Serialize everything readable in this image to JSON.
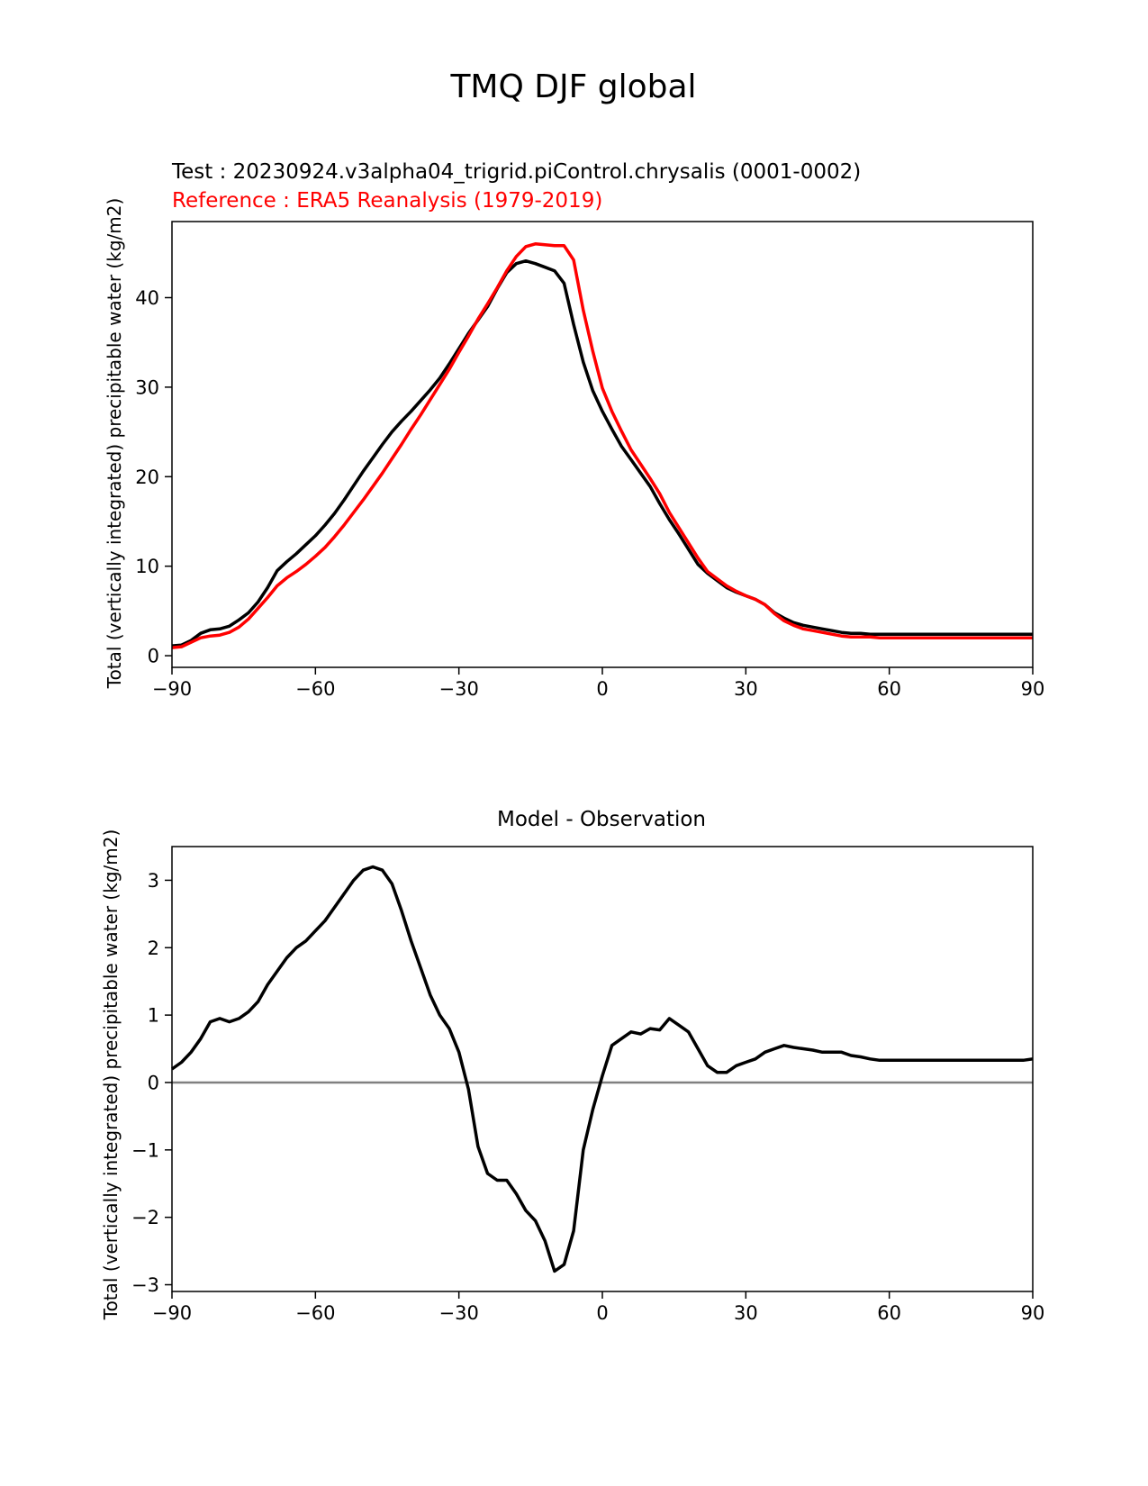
{
  "figure": {
    "suptitle": "TMQ DJF global"
  },
  "chart_data": [
    {
      "type": "line",
      "title_test": "Test : 20230924.v3alpha04_trigrid.piControl.chrysalis (0001-0002)",
      "title_reference": "Reference : ERA5 Reanalysis (1979-2019)",
      "xlabel": "",
      "ylabel": "Total (vertically integrated) precipitable water (kg/m2)",
      "xlim": [
        -90,
        90
      ],
      "ylim": [
        -1.3,
        48.5
      ],
      "xticks": [
        -90,
        -60,
        -30,
        0,
        30,
        60,
        90
      ],
      "xtick_labels": [
        "−90",
        "−60",
        "−30",
        "0",
        "30",
        "60",
        "90"
      ],
      "yticks": [
        0,
        10,
        20,
        30,
        40
      ],
      "ytick_labels": [
        "0",
        "10",
        "20",
        "30",
        "40"
      ],
      "grid": false,
      "series": [
        {
          "color": "#000000",
          "x": [
            -90,
            -88,
            -86,
            -84,
            -82,
            -80,
            -78,
            -76,
            -74,
            -72,
            -70,
            -68,
            -66,
            -64,
            -62,
            -60,
            -58,
            -56,
            -54,
            -52,
            -50,
            -48,
            -46,
            -44,
            -42,
            -40,
            -38,
            -36,
            -34,
            -32,
            -30,
            -28,
            -26,
            -24,
            -22,
            -20,
            -18,
            -16,
            -14,
            -12,
            -10,
            -8,
            -6,
            -4,
            -2,
            0,
            2,
            4,
            6,
            8,
            10,
            12,
            14,
            16,
            18,
            20,
            22,
            24,
            26,
            28,
            30,
            32,
            34,
            36,
            38,
            40,
            42,
            44,
            46,
            48,
            50,
            52,
            54,
            56,
            58,
            60,
            62,
            64,
            66,
            68,
            70,
            72,
            74,
            76,
            78,
            80,
            82,
            84,
            86,
            88,
            90
          ],
          "y": [
            1.1,
            1.2,
            1.7,
            2.5,
            2.9,
            3.0,
            3.3,
            4.0,
            4.8,
            6.0,
            7.6,
            9.5,
            10.5,
            11.4,
            12.4,
            13.4,
            14.6,
            15.9,
            17.4,
            19.0,
            20.6,
            22.1,
            23.6,
            25.0,
            26.2,
            27.3,
            28.5,
            29.7,
            31.0,
            32.6,
            34.3,
            36.0,
            37.5,
            39.0,
            41.0,
            42.8,
            43.8,
            44.1,
            43.8,
            43.4,
            43.0,
            41.6,
            37.0,
            32.8,
            29.6,
            27.3,
            25.3,
            23.4,
            21.9,
            20.4,
            18.9,
            17.0,
            15.2,
            13.6,
            11.9,
            10.2,
            9.2,
            8.4,
            7.6,
            7.1,
            6.7,
            6.3,
            5.7,
            4.8,
            4.2,
            3.7,
            3.4,
            3.2,
            3.0,
            2.8,
            2.6,
            2.5,
            2.5,
            2.4,
            2.4,
            2.4,
            2.4,
            2.4,
            2.4,
            2.4,
            2.4,
            2.4,
            2.4,
            2.4,
            2.4,
            2.4,
            2.4,
            2.4,
            2.4,
            2.4,
            2.4
          ]
        },
        {
          "color": "#ff0000",
          "x": [
            -90,
            -88,
            -86,
            -84,
            -82,
            -80,
            -78,
            -76,
            -74,
            -72,
            -70,
            -68,
            -66,
            -64,
            -62,
            -60,
            -58,
            -56,
            -54,
            -52,
            -50,
            -48,
            -46,
            -44,
            -42,
            -40,
            -38,
            -36,
            -34,
            -32,
            -30,
            -28,
            -26,
            -24,
            -22,
            -20,
            -18,
            -16,
            -14,
            -12,
            -10,
            -8,
            -6,
            -4,
            -2,
            0,
            2,
            4,
            6,
            8,
            10,
            12,
            14,
            16,
            18,
            20,
            22,
            24,
            26,
            28,
            30,
            32,
            34,
            36,
            38,
            40,
            42,
            44,
            46,
            48,
            50,
            52,
            54,
            56,
            58,
            60,
            62,
            64,
            66,
            68,
            70,
            72,
            74,
            76,
            78,
            80,
            82,
            84,
            86,
            88,
            90
          ],
          "y": [
            0.9,
            1.0,
            1.5,
            2.0,
            2.2,
            2.3,
            2.6,
            3.2,
            4.1,
            5.3,
            6.5,
            7.8,
            8.7,
            9.4,
            10.2,
            11.1,
            12.1,
            13.3,
            14.6,
            16.0,
            17.4,
            18.9,
            20.4,
            22.0,
            23.6,
            25.3,
            26.9,
            28.6,
            30.3,
            32.0,
            33.9,
            35.7,
            37.6,
            39.3,
            41.1,
            43.0,
            44.6,
            45.7,
            46.0,
            45.9,
            45.8,
            45.8,
            44.2,
            38.6,
            34.0,
            29.9,
            27.3,
            25.1,
            23.0,
            21.4,
            19.8,
            18.1,
            16.0,
            14.3,
            12.6,
            10.9,
            9.4,
            8.6,
            7.8,
            7.2,
            6.7,
            6.3,
            5.7,
            4.7,
            3.9,
            3.4,
            3.0,
            2.8,
            2.6,
            2.4,
            2.2,
            2.1,
            2.1,
            2.1,
            2.0,
            2.0,
            2.0,
            2.0,
            2.0,
            2.0,
            2.0,
            2.0,
            2.0,
            2.0,
            2.0,
            2.0,
            2.0,
            2.0,
            2.0,
            2.0,
            2.0
          ]
        }
      ]
    },
    {
      "type": "line",
      "title": "Model - Observation",
      "xlabel": "",
      "ylabel": "Total (vertically integrated) precipitable water (kg/m2)",
      "xlim": [
        -90,
        90
      ],
      "ylim": [
        -3.1,
        3.5
      ],
      "xticks": [
        -90,
        -60,
        -30,
        0,
        30,
        60,
        90
      ],
      "xtick_labels": [
        "−90",
        "−60",
        "−30",
        "0",
        "30",
        "60",
        "90"
      ],
      "yticks": [
        -3,
        -2,
        -1,
        0,
        1,
        2,
        3
      ],
      "ytick_labels": [
        "−3",
        "−2",
        "−1",
        "0",
        "1",
        "2",
        "3"
      ],
      "zero_line_color": "#808080",
      "grid": false,
      "series": [
        {
          "color": "#000000",
          "x": [
            -90,
            -88,
            -86,
            -84,
            -82,
            -80,
            -78,
            -76,
            -74,
            -72,
            -70,
            -68,
            -66,
            -64,
            -62,
            -60,
            -58,
            -56,
            -54,
            -52,
            -50,
            -48,
            -46,
            -44,
            -42,
            -40,
            -38,
            -36,
            -34,
            -32,
            -30,
            -28,
            -26,
            -24,
            -22,
            -20,
            -18,
            -16,
            -14,
            -12,
            -10,
            -8,
            -6,
            -4,
            -2,
            0,
            2,
            4,
            6,
            8,
            10,
            12,
            14,
            16,
            18,
            20,
            22,
            24,
            26,
            28,
            30,
            32,
            34,
            36,
            38,
            40,
            42,
            44,
            46,
            48,
            50,
            52,
            54,
            56,
            58,
            60,
            62,
            64,
            66,
            68,
            70,
            72,
            74,
            76,
            78,
            80,
            82,
            84,
            86,
            88,
            90
          ],
          "y": [
            0.2,
            0.3,
            0.45,
            0.65,
            0.9,
            0.95,
            0.9,
            0.95,
            1.05,
            1.2,
            1.45,
            1.65,
            1.85,
            2.0,
            2.1,
            2.25,
            2.4,
            2.6,
            2.8,
            3.0,
            3.15,
            3.2,
            3.15,
            2.95,
            2.55,
            2.1,
            1.7,
            1.3,
            1.0,
            0.8,
            0.45,
            -0.1,
            -0.95,
            -1.35,
            -1.45,
            -1.45,
            -1.65,
            -1.9,
            -2.05,
            -2.35,
            -2.8,
            -2.7,
            -2.2,
            -1.0,
            -0.4,
            0.1,
            0.55,
            0.65,
            0.75,
            0.72,
            0.8,
            0.78,
            0.95,
            0.85,
            0.75,
            0.5,
            0.25,
            0.15,
            0.15,
            0.25,
            0.3,
            0.35,
            0.45,
            0.5,
            0.55,
            0.52,
            0.5,
            0.48,
            0.45,
            0.45,
            0.45,
            0.4,
            0.38,
            0.35,
            0.33,
            0.33,
            0.33,
            0.33,
            0.33,
            0.33,
            0.33,
            0.33,
            0.33,
            0.33,
            0.33,
            0.33,
            0.33,
            0.33,
            0.33,
            0.33,
            0.35
          ]
        }
      ]
    }
  ]
}
